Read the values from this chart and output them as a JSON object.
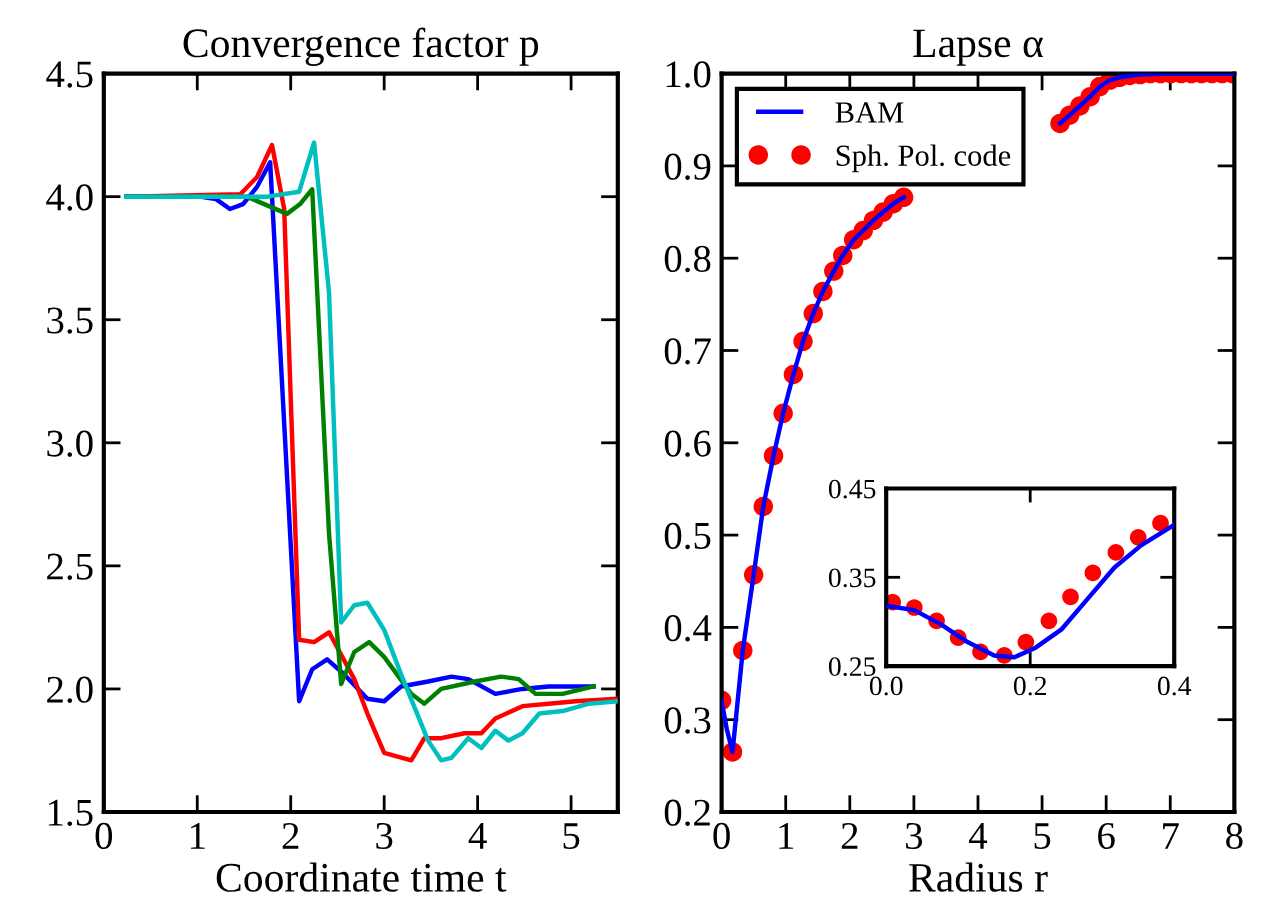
{
  "chart_data": [
    {
      "type": "line",
      "title": "Convergence factor p",
      "xlabel": "Coordinate time t",
      "xlim": [
        0,
        5.5
      ],
      "xticks": [
        0,
        1,
        2,
        3,
        4,
        5
      ],
      "ylim": [
        1.5,
        4.5
      ],
      "yticks": [
        {
          "value": 1.5,
          "label": "1.5"
        },
        {
          "value": 2,
          "label": "2.0"
        },
        {
          "value": 2.5,
          "label": "2.5"
        },
        {
          "value": 3,
          "label": "3.0"
        },
        {
          "value": 3.5,
          "label": "3.5"
        },
        {
          "value": 4,
          "label": "4.0"
        },
        {
          "value": 4.5,
          "label": "4.5"
        }
      ],
      "grid": false,
      "legend": false,
      "series": [
        {
          "color": "#0000ff",
          "x": [
            0.24,
            1.03,
            1.2,
            1.35,
            1.49,
            1.64,
            1.78,
            2.09,
            2.23,
            2.39,
            2.57,
            2.82,
            3.0,
            3.18,
            3.47,
            3.72,
            3.9,
            4.19,
            4.48,
            4.76,
            5.24
          ],
          "values": [
            4.0,
            4.0,
            3.99,
            3.95,
            3.97,
            4.04,
            4.14,
            1.95,
            2.08,
            2.12,
            2.06,
            1.96,
            1.95,
            2.01,
            2.03,
            2.05,
            2.04,
            1.98,
            2.0,
            2.01,
            2.01
          ]
        },
        {
          "color": "#ff0000",
          "x": [
            0.24,
            1.46,
            1.64,
            1.8,
            1.93,
            2.09,
            2.25,
            2.41,
            2.68,
            2.82,
            3.0,
            3.29,
            3.43,
            3.61,
            3.86,
            4.04,
            4.19,
            4.48,
            4.76,
            5.05,
            5.5
          ],
          "values": [
            4.0,
            4.01,
            4.08,
            4.21,
            3.95,
            2.2,
            2.19,
            2.23,
            2.04,
            1.9,
            1.74,
            1.71,
            1.8,
            1.8,
            1.82,
            1.82,
            1.88,
            1.93,
            1.94,
            1.95,
            1.96
          ]
        },
        {
          "color": "#008000",
          "x": [
            0.24,
            1.53,
            1.96,
            2.1,
            2.23,
            2.41,
            2.54,
            2.68,
            2.84,
            3.0,
            3.29,
            3.43,
            3.61,
            3.97,
            4.25,
            4.44,
            4.62,
            4.91,
            5.24
          ],
          "values": [
            4.0,
            4.0,
            3.93,
            3.97,
            4.03,
            2.63,
            2.02,
            2.15,
            2.19,
            2.13,
            1.98,
            1.94,
            2.0,
            2.03,
            2.05,
            2.04,
            1.98,
            1.98,
            2.01
          ]
        },
        {
          "color": "#00bfbf",
          "x": [
            0.24,
            1.75,
            2.09,
            2.25,
            2.41,
            2.54,
            2.68,
            2.82,
            3.0,
            3.18,
            3.47,
            3.61,
            3.72,
            3.9,
            4.04,
            4.19,
            4.33,
            4.48,
            4.66,
            4.91,
            5.19,
            5.5
          ],
          "values": [
            4.0,
            4.0,
            4.02,
            4.22,
            3.61,
            2.27,
            2.34,
            2.35,
            2.24,
            2.06,
            1.79,
            1.71,
            1.72,
            1.8,
            1.76,
            1.83,
            1.79,
            1.82,
            1.9,
            1.91,
            1.94,
            1.95
          ]
        }
      ]
    },
    {
      "type": "line",
      "title": "Lapse α",
      "xlabel": "Radius r",
      "xlim": [
        0,
        8
      ],
      "xticks": [
        0,
        1,
        2,
        3,
        4,
        5,
        6,
        7,
        8
      ],
      "ylim": [
        0.2,
        1.0
      ],
      "yticks": [
        {
          "value": 0.2,
          "label": "0.2"
        },
        {
          "value": 0.3,
          "label": "0.3"
        },
        {
          "value": 0.4,
          "label": "0.4"
        },
        {
          "value": 0.5,
          "label": "0.5"
        },
        {
          "value": 0.6,
          "label": "0.6"
        },
        {
          "value": 0.7,
          "label": "0.7"
        },
        {
          "value": 0.8,
          "label": "0.8"
        },
        {
          "value": 0.9,
          "label": "0.9"
        },
        {
          "value": 1.0,
          "label": "1.0"
        }
      ],
      "grid": false,
      "legend": "top left",
      "series": [
        {
          "name": "BAM",
          "color": "#0000ff",
          "type": "line",
          "x": [
            0,
            0.08,
            0.17,
            0.25,
            0.33,
            0.5,
            0.65,
            0.81,
            0.96,
            1.12,
            1.27,
            1.43,
            1.58,
            1.75,
            1.89,
            2.06,
            2.21,
            2.37,
            2.52,
            2.68,
            2.84,
            4.0,
            5.28,
            5.43,
            5.59,
            5.75,
            5.9,
            6.06,
            6.21,
            6.5,
            7.0,
            8.0
          ],
          "values": [
            0.32,
            0.29,
            0.265,
            0.32,
            0.375,
            0.457,
            0.531,
            0.586,
            0.632,
            0.674,
            0.71,
            0.74,
            0.764,
            0.786,
            0.803,
            0.82,
            0.83,
            0.841,
            0.85,
            0.859,
            0.866,
            null,
            0.946,
            0.955,
            0.965,
            0.975,
            0.986,
            0.993,
            0.996,
            0.999,
            1.0,
            1.0
          ]
        },
        {
          "name": "Sph. Pol. code",
          "color": "#ff0000",
          "type": "scatter",
          "marker": "circle",
          "x": [
            0,
            0.17,
            0.33,
            0.5,
            0.65,
            0.81,
            0.96,
            1.12,
            1.27,
            1.43,
            1.58,
            1.75,
            1.89,
            2.06,
            2.21,
            2.37,
            2.52,
            2.68,
            2.84,
            5.28,
            5.43,
            5.59,
            5.75,
            5.9,
            6.06,
            6.21,
            6.37,
            6.53,
            6.69,
            6.85,
            7.01,
            7.17,
            7.33,
            7.49,
            7.65,
            7.81,
            7.97
          ],
          "values": [
            0.321,
            0.265,
            0.375,
            0.457,
            0.531,
            0.586,
            0.632,
            0.674,
            0.71,
            0.74,
            0.764,
            0.786,
            0.803,
            0.82,
            0.83,
            0.841,
            0.85,
            0.859,
            0.866,
            0.946,
            0.955,
            0.965,
            0.975,
            0.986,
            0.993,
            0.996,
            0.998,
            0.999,
            1.0,
            1.0,
            1.0,
            1.0,
            1.0,
            1.0,
            1.0,
            1.0,
            1.0
          ]
        }
      ]
    },
    {
      "type": "line",
      "xlim": [
        0,
        0.4
      ],
      "xticks": [
        {
          "value": 0,
          "label": "0.0"
        },
        {
          "value": 0.2,
          "label": "0.2"
        },
        {
          "value": 0.4,
          "label": "0.4"
        }
      ],
      "ylim": [
        0.25,
        0.45
      ],
      "yticks": [
        0.25,
        0.35,
        0.45
      ],
      "grid": false,
      "legend": false,
      "series": [
        {
          "color": "#0000ff",
          "type": "line",
          "x": [
            0,
            0.039,
            0.076,
            0.113,
            0.15,
            0.178,
            0.206,
            0.243,
            0.28,
            0.317,
            0.354,
            0.4
          ],
          "values": [
            0.318,
            0.313,
            0.297,
            0.277,
            0.262,
            0.26,
            0.27,
            0.291,
            0.326,
            0.361,
            0.386,
            0.409
          ]
        },
        {
          "color": "#ff0000",
          "type": "scatter",
          "marker": "circle",
          "x": [
            0.009,
            0.039,
            0.07,
            0.1,
            0.131,
            0.164,
            0.194,
            0.226,
            0.256,
            0.287,
            0.319,
            0.35,
            0.381
          ],
          "values": [
            0.322,
            0.316,
            0.301,
            0.282,
            0.266,
            0.262,
            0.277,
            0.301,
            0.328,
            0.355,
            0.378,
            0.395,
            0.411
          ]
        }
      ]
    }
  ]
}
